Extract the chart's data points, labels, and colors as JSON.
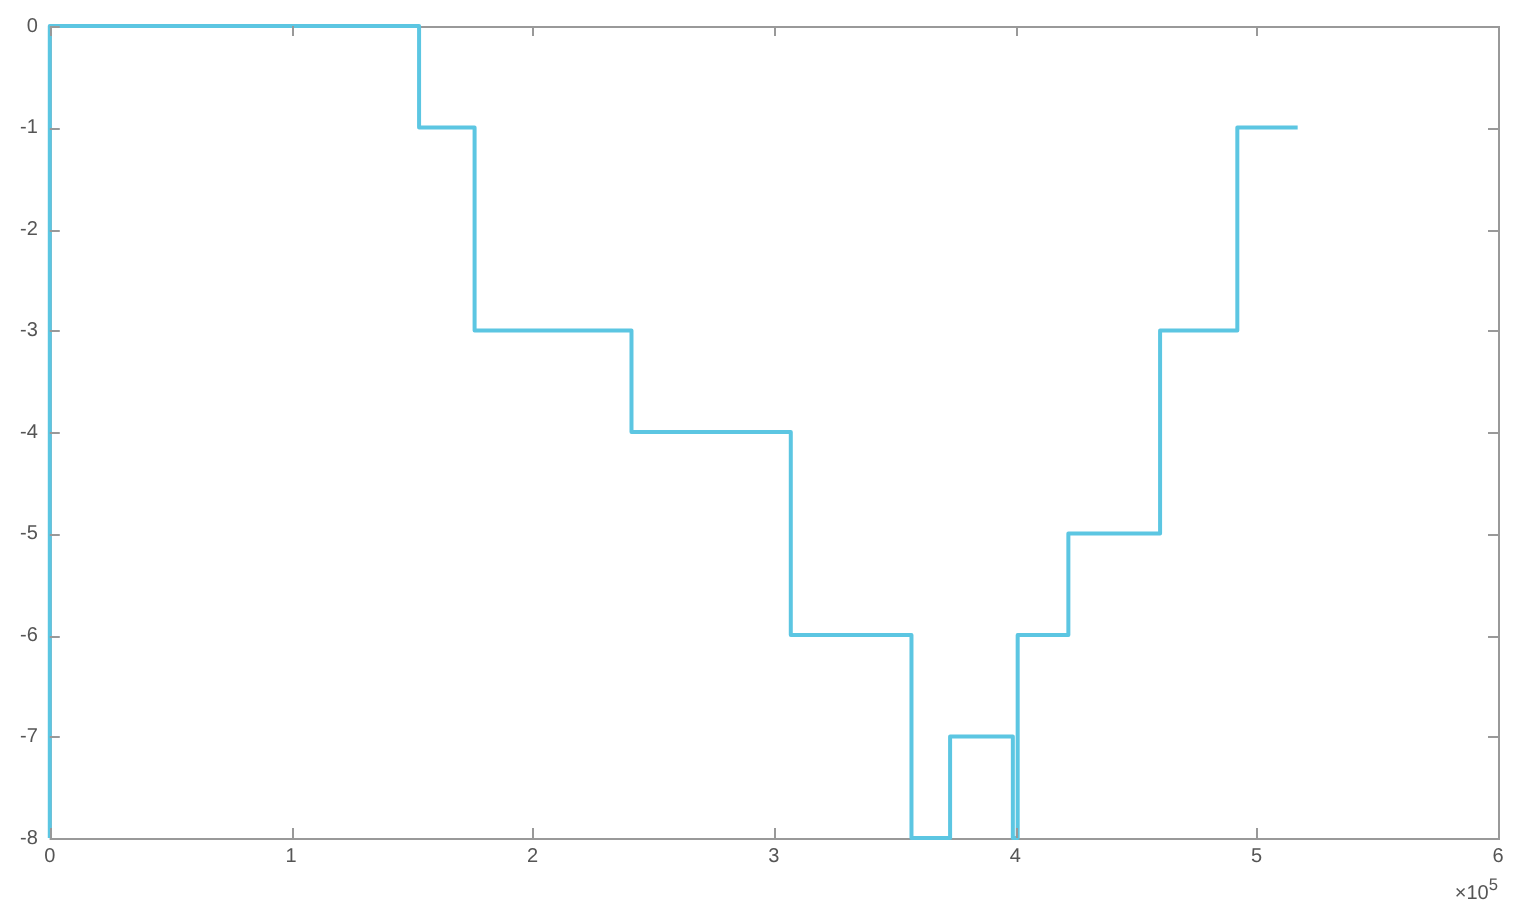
{
  "chart_data": {
    "type": "step",
    "x": [
      0,
      0,
      1.53,
      1.76,
      2.41,
      3.07,
      3.57,
      3.73,
      3.99,
      4.01,
      4.22,
      4.6,
      4.92,
      5.17
    ],
    "series": [
      {
        "color": "#5cc6e2",
        "values": [
          -8,
          0,
          -1,
          -3,
          -4,
          -6,
          -8,
          -7,
          -8,
          -6,
          -5,
          -3,
          -1,
          -1
        ]
      }
    ],
    "xlim": [
      0,
      6
    ],
    "xticks": [
      0,
      1,
      2,
      3,
      4,
      5,
      6
    ],
    "ylim": [
      -8,
      0
    ],
    "yticks": [
      -8,
      -7,
      -6,
      -5,
      -4,
      -3,
      -2,
      -1,
      0
    ],
    "annotations": [
      "×10$^{5}$"
    ],
    "legend": false
  }
}
